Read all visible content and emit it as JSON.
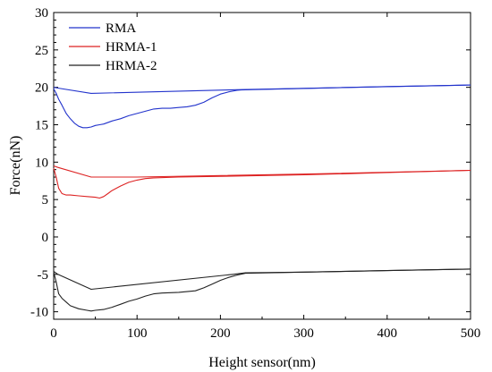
{
  "chart_data": {
    "type": "line",
    "xlabel": "Height sensor(nm)",
    "ylabel": "Force(nN)",
    "xlim": [
      0,
      500
    ],
    "ylim": [
      -11,
      30
    ],
    "xticks": [
      0,
      100,
      200,
      300,
      400,
      500
    ],
    "yticks": [
      -10,
      -5,
      0,
      5,
      10,
      15,
      20,
      25,
      30
    ],
    "grid": false,
    "legend_position": "top-left",
    "series": [
      {
        "name": "RMA",
        "color": "#2233cc",
        "approach": {
          "x": [
            0,
            5,
            45,
            225,
            500
          ],
          "y": [
            20.0,
            19.9,
            19.2,
            19.7,
            20.3
          ]
        },
        "retract": {
          "x": [
            0,
            3,
            6,
            10,
            15,
            20,
            25,
            30,
            35,
            40,
            45,
            50,
            55,
            60,
            70,
            80,
            90,
            100,
            110,
            120,
            130,
            140,
            150,
            160,
            170,
            180,
            190,
            200,
            210,
            220,
            225,
            240,
            300,
            400,
            500
          ],
          "y": [
            19.8,
            19.2,
            18.4,
            17.6,
            16.5,
            15.8,
            15.2,
            14.8,
            14.6,
            14.6,
            14.7,
            14.9,
            15.0,
            15.1,
            15.5,
            15.8,
            16.2,
            16.5,
            16.8,
            17.1,
            17.2,
            17.2,
            17.3,
            17.4,
            17.6,
            18.0,
            18.6,
            19.1,
            19.4,
            19.6,
            19.65,
            19.7,
            19.85,
            20.1,
            20.3
          ]
        }
      },
      {
        "name": "HRMA-1",
        "color": "#dd2222",
        "approach": {
          "x": [
            0,
            5,
            45,
            100,
            300,
            500
          ],
          "y": [
            9.5,
            9.3,
            8.0,
            8.0,
            8.4,
            8.9
          ]
        },
        "retract": {
          "x": [
            0,
            3,
            6,
            10,
            15,
            20,
            30,
            40,
            50,
            55,
            60,
            65,
            70,
            80,
            90,
            100,
            110,
            120,
            150,
            200,
            300,
            400,
            500
          ],
          "y": [
            9.2,
            8.0,
            6.5,
            5.8,
            5.6,
            5.6,
            5.5,
            5.4,
            5.3,
            5.2,
            5.4,
            5.8,
            6.2,
            6.8,
            7.3,
            7.6,
            7.8,
            7.9,
            8.0,
            8.1,
            8.3,
            8.6,
            8.9
          ]
        }
      },
      {
        "name": "HRMA-2",
        "color": "#222222",
        "approach": {
          "x": [
            0,
            5,
            45,
            215,
            230,
            300,
            400,
            500
          ],
          "y": [
            -4.6,
            -5.0,
            -7.0,
            -5.0,
            -4.8,
            -4.7,
            -4.5,
            -4.3
          ]
        },
        "retract": {
          "x": [
            0,
            3,
            6,
            10,
            15,
            20,
            30,
            40,
            45,
            50,
            60,
            70,
            80,
            90,
            100,
            110,
            120,
            130,
            150,
            170,
            180,
            190,
            200,
            210,
            220,
            230,
            300,
            400,
            500
          ],
          "y": [
            -4.7,
            -6.0,
            -7.6,
            -8.2,
            -8.7,
            -9.2,
            -9.6,
            -9.8,
            -9.9,
            -9.8,
            -9.7,
            -9.4,
            -9.0,
            -8.6,
            -8.3,
            -7.9,
            -7.6,
            -7.5,
            -7.4,
            -7.2,
            -6.8,
            -6.3,
            -5.8,
            -5.4,
            -5.1,
            -4.85,
            -4.7,
            -4.5,
            -4.3
          ]
        }
      }
    ]
  }
}
